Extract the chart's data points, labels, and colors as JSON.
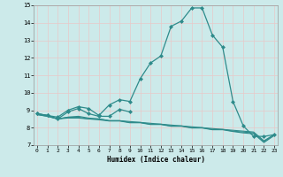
{
  "xlabel": "Humidex (Indice chaleur)",
  "x": [
    0,
    1,
    2,
    3,
    4,
    5,
    6,
    7,
    8,
    9,
    10,
    11,
    12,
    13,
    14,
    15,
    16,
    17,
    18,
    19,
    20,
    21,
    22,
    23
  ],
  "line_max": [
    8.8,
    8.7,
    8.6,
    9.0,
    9.2,
    9.1,
    8.7,
    9.3,
    9.6,
    9.5,
    10.8,
    11.7,
    12.1,
    13.8,
    14.1,
    14.85,
    14.85,
    13.3,
    12.6,
    9.5,
    8.1,
    7.5,
    7.5,
    7.6
  ],
  "line_mid1_x": [
    0,
    1,
    2,
    3,
    4,
    5,
    6,
    7,
    8,
    9
  ],
  "line_mid1_y": [
    8.8,
    8.7,
    8.5,
    8.9,
    9.1,
    8.8,
    8.65,
    8.65,
    9.05,
    8.9
  ],
  "line_flat1": [
    8.8,
    8.7,
    8.5,
    8.6,
    8.65,
    8.55,
    8.5,
    8.4,
    8.4,
    8.35,
    8.3,
    8.25,
    8.2,
    8.15,
    8.1,
    8.05,
    8.0,
    7.95,
    7.9,
    7.85,
    7.8,
    7.75,
    7.25,
    7.6
  ],
  "line_flat2": [
    8.75,
    8.65,
    8.5,
    8.6,
    8.6,
    8.5,
    8.5,
    8.4,
    8.4,
    8.3,
    8.3,
    8.2,
    8.2,
    8.1,
    8.1,
    8.0,
    8.0,
    7.9,
    7.9,
    7.8,
    7.75,
    7.7,
    7.2,
    7.6
  ],
  "line_flat3": [
    8.75,
    8.65,
    8.5,
    8.55,
    8.55,
    8.5,
    8.45,
    8.38,
    8.38,
    8.28,
    8.28,
    8.18,
    8.18,
    8.08,
    8.08,
    7.98,
    7.98,
    7.88,
    7.88,
    7.78,
    7.7,
    7.65,
    7.15,
    7.55
  ],
  "color": "#2e8b8b",
  "bg_color": "#cceaea",
  "grid_color": "#b8d8d8",
  "ylim": [
    7,
    15
  ],
  "xlim": [
    -0.3,
    23.3
  ],
  "yticks": [
    7,
    8,
    9,
    10,
    11,
    12,
    13,
    14,
    15
  ],
  "xticks": [
    0,
    1,
    2,
    3,
    4,
    5,
    6,
    7,
    8,
    9,
    10,
    11,
    12,
    13,
    14,
    15,
    16,
    17,
    18,
    19,
    20,
    21,
    22,
    23
  ]
}
